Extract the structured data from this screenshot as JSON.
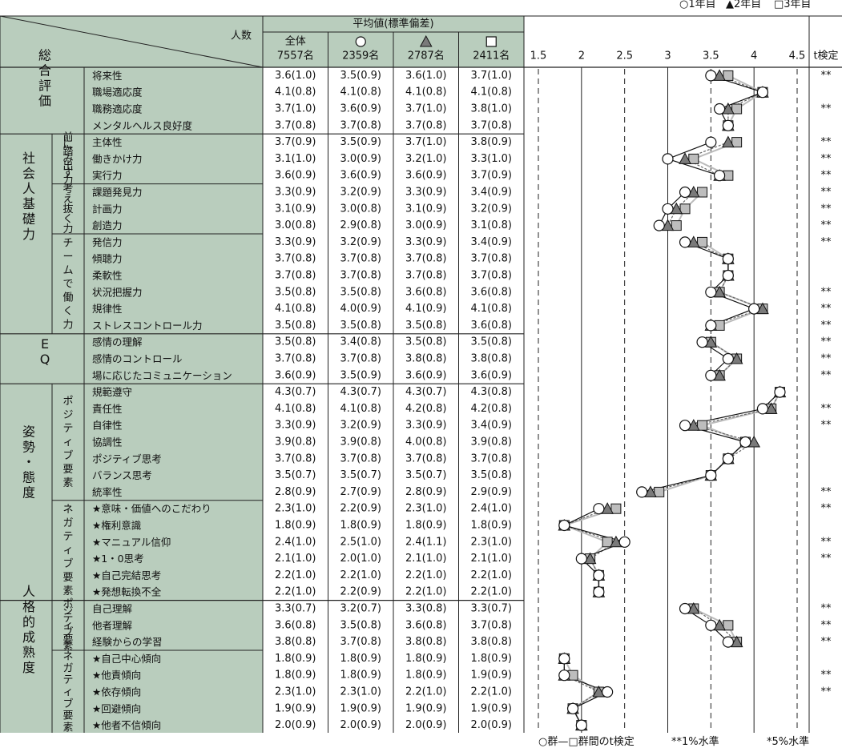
{
  "legend_top": {
    "g1": "○1年目",
    "g2": "▲2年目",
    "g3": "□3年目"
  },
  "headers": {
    "avg_group": "平均値(標準偏差)",
    "count_label": "人数",
    "columns": [
      {
        "symbol": "全体",
        "n": "7557名"
      },
      {
        "symbol": "○",
        "n": "2359名"
      },
      {
        "symbol": "▲",
        "n": "2787名"
      },
      {
        "symbol": "□",
        "n": "2411名"
      }
    ],
    "ttest": "t検定"
  },
  "legend_bottom": {
    "ttest_note": "○群—□群間のt検定",
    "p1": "**1%水準",
    "p5": "*5%水準"
  },
  "categories": [
    {
      "label": "総合評価",
      "start": 0,
      "end": 3,
      "subs": []
    },
    {
      "label": "社会人基礎力",
      "start": 4,
      "end": 15,
      "subs": [
        {
          "label": "前に踏み出す力",
          "start": 4,
          "end": 6
        },
        {
          "label": "考え抜く力",
          "start": 7,
          "end": 9
        },
        {
          "label": "チームで働く力",
          "start": 10,
          "end": 15
        }
      ]
    },
    {
      "label": "EQ",
      "start": 16,
      "end": 18,
      "subs": []
    },
    {
      "label": "姿勢・態度",
      "start": 19,
      "end": 31,
      "subs": [
        {
          "label": "ポジティブ要素",
          "start": 19,
          "end": 25
        },
        {
          "label": "ネガティブ要素",
          "start": 26,
          "end": 31
        }
      ]
    },
    {
      "label": "人格的成熟度",
      "start": 32,
      "end": 39,
      "subs": [
        {
          "label": "ポジティブ要素",
          "start": 32,
          "end": 34
        },
        {
          "label": "ネガティブ要素",
          "start": 35,
          "end": 39
        }
      ]
    }
  ],
  "colors": {
    "table_header": "#b9cdbd",
    "g1_line": "#111111",
    "g2_line": "#666666",
    "g3_line": "#bbbbbb",
    "g2_fill": "#7a7a7a",
    "g3_fill": "#bdbdbd",
    "grid": "#222222"
  },
  "chart_data": {
    "type": "line",
    "x_range": [
      1.5,
      4.5
    ],
    "x_ticks": [
      "1.5",
      "2",
      "2.5",
      "3",
      "3.5",
      "4",
      "4.5"
    ],
    "dashed_ticks": [
      1.5,
      2.5,
      3.5,
      4.5
    ],
    "solid_ticks": [
      2,
      3,
      4
    ],
    "series": [
      {
        "name": "1年目",
        "key": "g1"
      },
      {
        "name": "2年目",
        "key": "g2"
      },
      {
        "name": "3年目",
        "key": "g3"
      }
    ],
    "rows": [
      {
        "item": "将来性",
        "all": "3.6(1.0)",
        "g1": "3.5(0.9)",
        "g2": "3.6(1.0)",
        "g3": "3.7(1.0)",
        "v": [
          3.5,
          3.6,
          3.7
        ],
        "sig": "**"
      },
      {
        "item": "職場適応度",
        "all": "4.1(0.8)",
        "g1": "4.1(0.8)",
        "g2": "4.1(0.8)",
        "g3": "4.1(0.8)",
        "v": [
          4.1,
          4.1,
          4.1
        ],
        "sig": ""
      },
      {
        "item": "職務適応度",
        "all": "3.7(1.0)",
        "g1": "3.6(0.9)",
        "g2": "3.7(1.0)",
        "g3": "3.8(1.0)",
        "v": [
          3.6,
          3.7,
          3.8
        ],
        "sig": "**"
      },
      {
        "item": "メンタルヘルス良好度",
        "all": "3.7(0.8)",
        "g1": "3.7(0.8)",
        "g2": "3.7(0.8)",
        "g3": "3.7(0.8)",
        "v": [
          3.7,
          3.7,
          3.7
        ],
        "sig": ""
      },
      {
        "item": "主体性",
        "all": "3.7(0.9)",
        "g1": "3.5(0.9)",
        "g2": "3.7(1.0)",
        "g3": "3.8(0.9)",
        "v": [
          3.5,
          3.7,
          3.8
        ],
        "sig": "**"
      },
      {
        "item": "働きかけ力",
        "all": "3.1(1.0)",
        "g1": "3.0(0.9)",
        "g2": "3.2(1.0)",
        "g3": "3.3(1.0)",
        "v": [
          3.0,
          3.2,
          3.3
        ],
        "sig": "**"
      },
      {
        "item": "実行力",
        "all": "3.6(0.9)",
        "g1": "3.6(0.9)",
        "g2": "3.6(0.9)",
        "g3": "3.7(0.9)",
        "v": [
          3.6,
          3.6,
          3.7
        ],
        "sig": "**"
      },
      {
        "item": "課題発見力",
        "all": "3.3(0.9)",
        "g1": "3.2(0.9)",
        "g2": "3.3(0.9)",
        "g3": "3.4(0.9)",
        "v": [
          3.2,
          3.3,
          3.4
        ],
        "sig": "**"
      },
      {
        "item": "計画力",
        "all": "3.1(0.9)",
        "g1": "3.0(0.8)",
        "g2": "3.1(0.9)",
        "g3": "3.2(0.9)",
        "v": [
          3.0,
          3.1,
          3.2
        ],
        "sig": "**"
      },
      {
        "item": "創造力",
        "all": "3.0(0.8)",
        "g1": "2.9(0.8)",
        "g2": "3.0(0.9)",
        "g3": "3.1(0.8)",
        "v": [
          2.9,
          3.0,
          3.1
        ],
        "sig": "**"
      },
      {
        "item": "発信力",
        "all": "3.3(0.9)",
        "g1": "3.2(0.9)",
        "g2": "3.3(0.9)",
        "g3": "3.4(0.9)",
        "v": [
          3.2,
          3.3,
          3.4
        ],
        "sig": "**"
      },
      {
        "item": "傾聴力",
        "all": "3.7(0.8)",
        "g1": "3.7(0.8)",
        "g2": "3.7(0.8)",
        "g3": "3.7(0.8)",
        "v": [
          3.7,
          3.7,
          3.7
        ],
        "sig": ""
      },
      {
        "item": "柔軟性",
        "all": "3.7(0.8)",
        "g1": "3.7(0.8)",
        "g2": "3.7(0.8)",
        "g3": "3.7(0.8)",
        "v": [
          3.7,
          3.7,
          3.7
        ],
        "sig": ""
      },
      {
        "item": "状況把握力",
        "all": "3.5(0.8)",
        "g1": "3.5(0.8)",
        "g2": "3.6(0.8)",
        "g3": "3.6(0.8)",
        "v": [
          3.5,
          3.6,
          3.6
        ],
        "sig": "**"
      },
      {
        "item": "規律性",
        "all": "4.1(0.8)",
        "g1": "4.0(0.9)",
        "g2": "4.1(0.9)",
        "g3": "4.1(0.8)",
        "v": [
          4.0,
          4.1,
          4.1
        ],
        "sig": "**"
      },
      {
        "item": "ストレスコントロール力",
        "all": "3.5(0.8)",
        "g1": "3.5(0.8)",
        "g2": "3.5(0.8)",
        "g3": "3.6(0.8)",
        "v": [
          3.5,
          3.5,
          3.6
        ],
        "sig": "**"
      },
      {
        "item": "感情の理解",
        "all": "3.5(0.8)",
        "g1": "3.4(0.8)",
        "g2": "3.5(0.8)",
        "g3": "3.5(0.8)",
        "v": [
          3.4,
          3.5,
          3.5
        ],
        "sig": "**"
      },
      {
        "item": "感情のコントロール",
        "all": "3.7(0.8)",
        "g1": "3.7(0.8)",
        "g2": "3.8(0.8)",
        "g3": "3.8(0.8)",
        "v": [
          3.7,
          3.8,
          3.8
        ],
        "sig": "**"
      },
      {
        "item": "場に応じたコミュニケーション",
        "all": "3.6(0.9)",
        "g1": "3.5(0.9)",
        "g2": "3.6(0.9)",
        "g3": "3.6(0.9)",
        "v": [
          3.5,
          3.6,
          3.6
        ],
        "sig": "**"
      },
      {
        "item": "規範遵守",
        "all": "4.3(0.7)",
        "g1": "4.3(0.7)",
        "g2": "4.3(0.7)",
        "g3": "4.3(0.8)",
        "v": [
          4.3,
          4.3,
          4.3
        ],
        "sig": ""
      },
      {
        "item": "責任性",
        "all": "4.1(0.8)",
        "g1": "4.1(0.8)",
        "g2": "4.2(0.8)",
        "g3": "4.2(0.8)",
        "v": [
          4.1,
          4.2,
          4.2
        ],
        "sig": "**"
      },
      {
        "item": "自律性",
        "all": "3.3(0.9)",
        "g1": "3.2(0.9)",
        "g2": "3.3(0.9)",
        "g3": "3.4(0.9)",
        "v": [
          3.2,
          3.3,
          3.4
        ],
        "sig": "**"
      },
      {
        "item": "協調性",
        "all": "3.9(0.8)",
        "g1": "3.9(0.8)",
        "g2": "4.0(0.8)",
        "g3": "3.9(0.8)",
        "v": [
          3.9,
          4.0,
          3.9
        ],
        "sig": ""
      },
      {
        "item": "ポジティブ思考",
        "all": "3.7(0.8)",
        "g1": "3.7(0.8)",
        "g2": "3.7(0.8)",
        "g3": "3.7(0.8)",
        "v": [
          3.7,
          3.7,
          3.7
        ],
        "sig": ""
      },
      {
        "item": "バランス思考",
        "all": "3.5(0.7)",
        "g1": "3.5(0.7)",
        "g2": "3.5(0.7)",
        "g3": "3.5(0.8)",
        "v": [
          3.5,
          3.5,
          3.5
        ],
        "sig": ""
      },
      {
        "item": "統率性",
        "all": "2.8(0.9)",
        "g1": "2.7(0.9)",
        "g2": "2.8(0.9)",
        "g3": "2.9(0.9)",
        "v": [
          2.7,
          2.8,
          2.9
        ],
        "sig": "**"
      },
      {
        "item": "★意味・価値へのこだわり",
        "all": "2.3(1.0)",
        "g1": "2.2(0.9)",
        "g2": "2.3(1.0)",
        "g3": "2.4(1.0)",
        "v": [
          2.2,
          2.3,
          2.4
        ],
        "sig": "**"
      },
      {
        "item": "★権利意識",
        "all": "1.8(0.9)",
        "g1": "1.8(0.9)",
        "g2": "1.8(0.9)",
        "g3": "1.8(0.9)",
        "v": [
          1.8,
          1.8,
          1.8
        ],
        "sig": ""
      },
      {
        "item": "★マニュアル信仰",
        "all": "2.4(1.0)",
        "g1": "2.5(1.0)",
        "g2": "2.4(1.1)",
        "g3": "2.3(1.0)",
        "v": [
          2.5,
          2.4,
          2.3
        ],
        "sig": "**"
      },
      {
        "item": "★1・0思考",
        "all": "2.1(1.0)",
        "g1": "2.0(1.0)",
        "g2": "2.1(1.0)",
        "g3": "2.1(1.0)",
        "v": [
          2.0,
          2.1,
          2.1
        ],
        "sig": "**"
      },
      {
        "item": "★自己完結思考",
        "all": "2.2(1.0)",
        "g1": "2.2(1.0)",
        "g2": "2.2(1.0)",
        "g3": "2.2(1.0)",
        "v": [
          2.2,
          2.2,
          2.2
        ],
        "sig": ""
      },
      {
        "item": "★発想転換不全",
        "all": "2.2(1.0)",
        "g1": "2.2(0.9)",
        "g2": "2.2(1.0)",
        "g3": "2.2(1.0)",
        "v": [
          2.2,
          2.2,
          2.2
        ],
        "sig": ""
      },
      {
        "item": "自己理解",
        "all": "3.3(0.7)",
        "g1": "3.2(0.7)",
        "g2": "3.3(0.8)",
        "g3": "3.3(0.7)",
        "v": [
          3.2,
          3.3,
          3.3
        ],
        "sig": "**"
      },
      {
        "item": "他者理解",
        "all": "3.6(0.8)",
        "g1": "3.5(0.8)",
        "g2": "3.6(0.8)",
        "g3": "3.7(0.8)",
        "v": [
          3.5,
          3.6,
          3.7
        ],
        "sig": "**"
      },
      {
        "item": "経験からの学習",
        "all": "3.8(0.8)",
        "g1": "3.7(0.8)",
        "g2": "3.8(0.8)",
        "g3": "3.8(0.8)",
        "v": [
          3.7,
          3.8,
          3.8
        ],
        "sig": "**"
      },
      {
        "item": "★自己中心傾向",
        "all": "1.8(0.9)",
        "g1": "1.8(0.9)",
        "g2": "1.8(0.9)",
        "g3": "1.8(0.9)",
        "v": [
          1.8,
          1.8,
          1.8
        ],
        "sig": ""
      },
      {
        "item": "★他責傾向",
        "all": "1.8(0.9)",
        "g1": "1.8(0.9)",
        "g2": "1.8(0.9)",
        "g3": "1.9(0.9)",
        "v": [
          1.8,
          1.8,
          1.9
        ],
        "sig": "**"
      },
      {
        "item": "★依存傾向",
        "all": "2.3(1.0)",
        "g1": "2.3(1.0)",
        "g2": "2.2(1.0)",
        "g3": "2.2(1.0)",
        "v": [
          2.3,
          2.2,
          2.2
        ],
        "sig": "**"
      },
      {
        "item": "★回避傾向",
        "all": "1.9(0.9)",
        "g1": "1.9(0.9)",
        "g2": "1.9(0.9)",
        "g3": "1.9(0.9)",
        "v": [
          1.9,
          1.9,
          1.9
        ],
        "sig": ""
      },
      {
        "item": "★他者不信傾向",
        "all": "2.0(0.9)",
        "g1": "2.0(0.9)",
        "g2": "2.0(0.9)",
        "g3": "2.0(0.9)",
        "v": [
          2.0,
          2.0,
          2.0
        ],
        "sig": ""
      }
    ]
  }
}
